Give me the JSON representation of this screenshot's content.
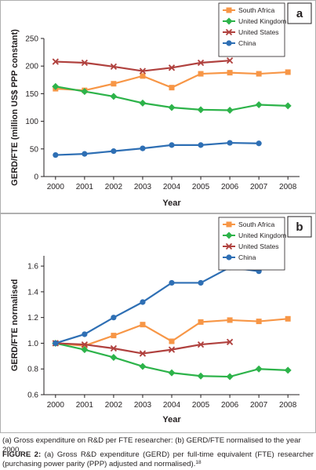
{
  "chart_data": [
    {
      "panel": "a",
      "type": "line",
      "title": "",
      "xlabel": "Year",
      "ylabel": "GERD/FTE (million US$ PPP constant)",
      "x": [
        2000,
        2001,
        2002,
        2003,
        2004,
        2005,
        2006,
        2007,
        2008
      ],
      "xlim": [
        1999.6,
        2008.4
      ],
      "ylim": [
        0,
        250
      ],
      "yticks": [
        "0",
        "50",
        "100",
        "150",
        "200",
        "250"
      ],
      "legend_position": "top-right",
      "grid": false,
      "series": [
        {
          "name": "South Africa",
          "color": "#f79646",
          "marker": "square",
          "values": [
            159,
            156,
            168,
            182,
            161,
            186,
            188,
            186,
            189
          ]
        },
        {
          "name": "United Kingdom",
          "color": "#2db34a",
          "marker": "diamond",
          "values": [
            163,
            154,
            145,
            133,
            125,
            121,
            120,
            130,
            128
          ]
        },
        {
          "name": "United States",
          "color": "#b0413e",
          "marker": "x",
          "values": [
            208,
            206,
            199,
            191,
            197,
            206,
            210,
            null,
            null
          ]
        },
        {
          "name": "China",
          "color": "#2e6fb4",
          "marker": "circle",
          "values": [
            39,
            41,
            46,
            51,
            57,
            57,
            61,
            60,
            null
          ]
        }
      ]
    },
    {
      "panel": "b",
      "type": "line",
      "title": "",
      "xlabel": "Year",
      "ylabel": "GERD/FTE normalised",
      "x": [
        2000,
        2001,
        2002,
        2003,
        2004,
        2005,
        2006,
        2007,
        2008
      ],
      "xlim": [
        1999.6,
        2008.4
      ],
      "ylim": [
        0.6,
        1.68
      ],
      "yticks": [
        "0.6",
        "0.8",
        "1.0",
        "1.2",
        "1.4",
        "1.6"
      ],
      "legend_position": "top-right",
      "grid": false,
      "series": [
        {
          "name": "South Africa",
          "color": "#f79646",
          "marker": "square",
          "values": [
            1.0,
            0.98,
            1.06,
            1.145,
            1.015,
            1.165,
            1.18,
            1.17,
            1.19
          ]
        },
        {
          "name": "United Kingdom",
          "color": "#2db34a",
          "marker": "diamond",
          "values": [
            1.0,
            0.95,
            0.89,
            0.82,
            0.77,
            0.745,
            0.74,
            0.8,
            0.79
          ]
        },
        {
          "name": "United States",
          "color": "#b0413e",
          "marker": "x",
          "values": [
            1.0,
            0.99,
            0.96,
            0.92,
            0.95,
            0.99,
            1.01,
            null,
            null
          ]
        },
        {
          "name": "China",
          "color": "#2e6fb4",
          "marker": "circle",
          "values": [
            1.0,
            1.07,
            1.2,
            1.32,
            1.47,
            1.47,
            1.59,
            1.56,
            null
          ]
        }
      ]
    }
  ],
  "caption": {
    "subcaption": "(a) Gross expenditure on R&D per FTE researcher: (b) GERD/FTE normalised to the year 2000.",
    "figure_label": "FIGURE 2:",
    "figure_text": " (a) Gross R&D expenditure (GERD) per full-time equivalent (FTE) researcher (purchasing power parity (PPP) adjusted and normalised).",
    "footnote_ref": "18"
  }
}
